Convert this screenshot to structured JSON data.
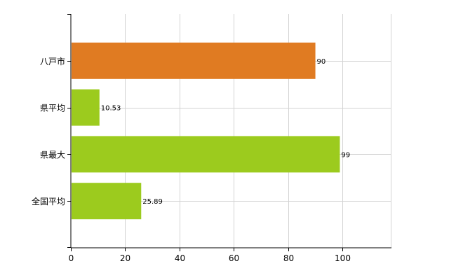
{
  "chart_data": {
    "type": "bar",
    "orientation": "horizontal",
    "title": "",
    "xlabel": "",
    "ylabel": "",
    "categories": [
      "八戸市",
      "県平均",
      "県最大",
      "全国平均"
    ],
    "values": [
      90,
      10.53,
      99,
      25.89
    ],
    "data_labels": [
      "90",
      "10.53",
      "99",
      "25.89"
    ],
    "bar_colors": [
      "#e07b22",
      "#9ccb1e",
      "#9ccb1e",
      "#9ccb1e"
    ],
    "xlim": [
      0,
      118
    ],
    "x_ticks": [
      0,
      20,
      40,
      60,
      80,
      100
    ],
    "x_tick_labels": [
      "0",
      "20",
      "40",
      "60",
      "80",
      "100"
    ],
    "grid": true,
    "grid_color": "#d3d3d3",
    "legend": "none"
  }
}
